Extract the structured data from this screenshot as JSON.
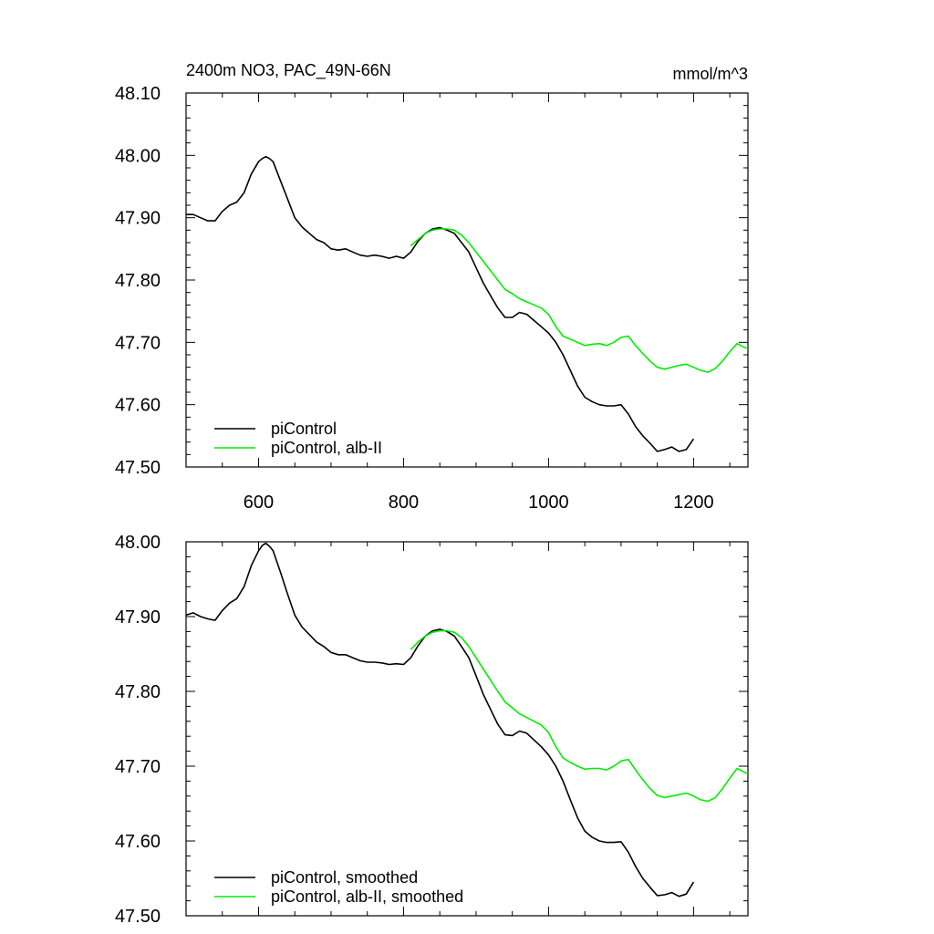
{
  "chart_data": [
    {
      "type": "line",
      "title": "2400m NO3, PAC_49N-66N",
      "units": "mmol/m^3",
      "xlim": [
        500,
        1275
      ],
      "ylim": [
        47.5,
        48.1
      ],
      "x_ticks": [
        600,
        800,
        1000,
        1200
      ],
      "x_tick_labels": [
        "600",
        "800",
        "1000",
        "1200"
      ],
      "y_ticks": [
        47.5,
        47.6,
        47.7,
        47.8,
        47.9,
        48.0,
        48.1
      ],
      "y_tick_labels": [
        "47.50",
        "47.60",
        "47.70",
        "47.80",
        "47.90",
        "48.00",
        "48.10"
      ],
      "legend_position": "bottom-left",
      "series": [
        {
          "name": "piControl",
          "color": "#000000",
          "x": [
            500,
            510,
            520,
            530,
            540,
            550,
            560,
            570,
            580,
            590,
            600,
            605,
            610,
            615,
            620,
            630,
            640,
            650,
            660,
            670,
            680,
            690,
            700,
            710,
            720,
            730,
            740,
            750,
            760,
            770,
            780,
            790,
            800,
            810,
            820,
            830,
            840,
            850,
            860,
            870,
            880,
            890,
            900,
            910,
            920,
            930,
            940,
            950,
            960,
            970,
            980,
            990,
            1000,
            1010,
            1020,
            1030,
            1040,
            1050,
            1060,
            1070,
            1080,
            1090,
            1100,
            1110,
            1120,
            1130,
            1140,
            1150,
            1160,
            1170,
            1180,
            1190,
            1200
          ],
          "y": [
            47.905,
            47.905,
            47.9,
            47.895,
            47.895,
            47.91,
            47.92,
            47.925,
            47.94,
            47.97,
            47.99,
            47.995,
            47.998,
            47.995,
            47.99,
            47.96,
            47.93,
            47.9,
            47.885,
            47.875,
            47.865,
            47.86,
            47.85,
            47.848,
            47.85,
            47.845,
            47.84,
            47.838,
            47.84,
            47.838,
            47.835,
            47.838,
            47.835,
            47.845,
            47.862,
            47.875,
            47.882,
            47.884,
            47.88,
            47.875,
            47.86,
            47.845,
            47.82,
            47.795,
            47.775,
            47.755,
            47.74,
            47.74,
            47.748,
            47.745,
            47.735,
            47.725,
            47.715,
            47.7,
            47.68,
            47.655,
            47.63,
            47.612,
            47.605,
            47.6,
            47.598,
            47.598,
            47.6,
            47.585,
            47.565,
            47.55,
            47.538,
            47.525,
            47.528,
            47.532,
            47.525,
            47.528,
            47.545
          ]
        },
        {
          "name": "piControl, alb-II",
          "color": "#00ee00",
          "x": [
            810,
            820,
            830,
            840,
            850,
            860,
            870,
            880,
            890,
            900,
            910,
            920,
            930,
            940,
            950,
            960,
            970,
            980,
            990,
            1000,
            1010,
            1020,
            1030,
            1040,
            1050,
            1060,
            1070,
            1080,
            1090,
            1100,
            1110,
            1120,
            1130,
            1140,
            1150,
            1160,
            1170,
            1180,
            1190,
            1200,
            1210,
            1220,
            1230,
            1240,
            1250,
            1260,
            1270,
            1275
          ],
          "y": [
            47.855,
            47.865,
            47.875,
            47.88,
            47.882,
            47.882,
            47.88,
            47.872,
            47.86,
            47.845,
            47.83,
            47.815,
            47.8,
            47.785,
            47.778,
            47.77,
            47.765,
            47.76,
            47.755,
            47.745,
            47.725,
            47.71,
            47.705,
            47.7,
            47.695,
            47.697,
            47.698,
            47.695,
            47.7,
            47.708,
            47.71,
            47.695,
            47.682,
            47.67,
            47.66,
            47.657,
            47.66,
            47.663,
            47.665,
            47.66,
            47.655,
            47.652,
            47.658,
            47.67,
            47.685,
            47.698,
            47.692,
            47.69
          ]
        }
      ]
    },
    {
      "type": "line",
      "title": "",
      "xlim": [
        500,
        1275
      ],
      "ylim": [
        47.5,
        48.0
      ],
      "x_ticks": [
        600,
        800,
        1000,
        1200
      ],
      "y_ticks": [
        47.5,
        47.6,
        47.7,
        47.8,
        47.9,
        48.0
      ],
      "y_tick_labels": [
        "47.50",
        "47.60",
        "47.70",
        "47.80",
        "47.90",
        "48.00"
      ],
      "legend_position": "bottom-left",
      "series": [
        {
          "name": "piControl, smoothed",
          "color": "#000000",
          "x": [
            500,
            510,
            520,
            530,
            540,
            550,
            560,
            570,
            580,
            590,
            600,
            605,
            610,
            615,
            620,
            630,
            640,
            650,
            660,
            670,
            680,
            690,
            700,
            710,
            720,
            730,
            740,
            750,
            760,
            770,
            780,
            790,
            800,
            810,
            820,
            830,
            840,
            850,
            860,
            870,
            880,
            890,
            900,
            910,
            920,
            930,
            940,
            950,
            960,
            970,
            980,
            990,
            1000,
            1010,
            1020,
            1030,
            1040,
            1050,
            1060,
            1070,
            1080,
            1090,
            1100,
            1110,
            1120,
            1130,
            1140,
            1150,
            1160,
            1170,
            1180,
            1190,
            1200
          ],
          "y": [
            47.902,
            47.905,
            47.9,
            47.897,
            47.895,
            47.908,
            47.918,
            47.924,
            47.94,
            47.968,
            47.988,
            47.995,
            47.998,
            47.994,
            47.988,
            47.96,
            47.93,
            47.902,
            47.886,
            47.876,
            47.866,
            47.86,
            47.852,
            47.849,
            47.849,
            47.845,
            47.841,
            47.839,
            47.839,
            47.838,
            47.836,
            47.837,
            47.836,
            47.845,
            47.861,
            47.874,
            47.881,
            47.883,
            47.88,
            47.874,
            47.86,
            47.845,
            47.821,
            47.796,
            47.776,
            47.756,
            47.742,
            47.741,
            47.747,
            47.744,
            47.735,
            47.726,
            47.715,
            47.7,
            47.68,
            47.655,
            47.631,
            47.613,
            47.605,
            47.6,
            47.598,
            47.598,
            47.599,
            47.585,
            47.566,
            47.55,
            47.538,
            47.527,
            47.528,
            47.531,
            47.526,
            47.529,
            47.545
          ]
        },
        {
          "name": "piControl, alb-II, smoothed",
          "color": "#00ee00",
          "x": [
            810,
            820,
            830,
            840,
            850,
            860,
            870,
            880,
            890,
            900,
            910,
            920,
            930,
            940,
            950,
            960,
            970,
            980,
            990,
            1000,
            1010,
            1020,
            1030,
            1040,
            1050,
            1060,
            1070,
            1080,
            1090,
            1100,
            1110,
            1120,
            1130,
            1140,
            1150,
            1160,
            1170,
            1180,
            1190,
            1200,
            1210,
            1220,
            1230,
            1240,
            1250,
            1260,
            1270,
            1275
          ],
          "y": [
            47.856,
            47.866,
            47.874,
            47.879,
            47.881,
            47.881,
            47.879,
            47.872,
            47.86,
            47.845,
            47.83,
            47.815,
            47.8,
            47.786,
            47.778,
            47.77,
            47.765,
            47.76,
            47.755,
            47.745,
            47.726,
            47.711,
            47.705,
            47.7,
            47.696,
            47.697,
            47.697,
            47.695,
            47.7,
            47.707,
            47.709,
            47.695,
            47.682,
            47.67,
            47.661,
            47.658,
            47.66,
            47.662,
            47.664,
            47.66,
            47.655,
            47.653,
            47.658,
            47.67,
            47.684,
            47.697,
            47.692,
            47.69
          ]
        }
      ]
    }
  ]
}
